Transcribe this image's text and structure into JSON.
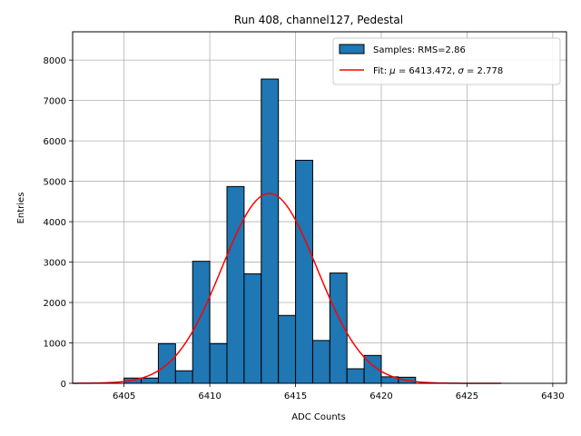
{
  "chart_data": {
    "type": "bar",
    "title": "Run 408, channel127, Pedestal",
    "xlabel": "ADC Counts",
    "ylabel": "Entries",
    "xlim": [
      6402,
      6430.8
    ],
    "ylim": [
      0,
      8700
    ],
    "xticks": [
      6405,
      6410,
      6415,
      6420,
      6425,
      6430
    ],
    "yticks": [
      0,
      1000,
      2000,
      3000,
      4000,
      5000,
      6000,
      7000,
      8000
    ],
    "grid": true,
    "legend_position": "top-right",
    "bin_width": 1,
    "bins": [
      {
        "x": 6405,
        "count": 130
      },
      {
        "x": 6406,
        "count": 130
      },
      {
        "x": 6407,
        "count": 980
      },
      {
        "x": 6408,
        "count": 310
      },
      {
        "x": 6409,
        "count": 3020
      },
      {
        "x": 6410,
        "count": 980
      },
      {
        "x": 6411,
        "count": 4870
      },
      {
        "x": 6412,
        "count": 2710
      },
      {
        "x": 6413,
        "count": 7530
      },
      {
        "x": 6414,
        "count": 1680
      },
      {
        "x": 6415,
        "count": 5520
      },
      {
        "x": 6416,
        "count": 1060
      },
      {
        "x": 6417,
        "count": 2730
      },
      {
        "x": 6418,
        "count": 360
      },
      {
        "x": 6419,
        "count": 690
      },
      {
        "x": 6420,
        "count": 160
      },
      {
        "x": 6421,
        "count": 150
      }
    ],
    "histogram_name": "Samples: RMS=2.86",
    "fit": {
      "name_prefix": "Fit: ",
      "mu_symbol": "μ",
      "mu_text": " = 6413.472, ",
      "sigma_symbol": "σ",
      "sigma_text": " = 2.778",
      "mu": 6413.472,
      "sigma": 2.778,
      "amplitude": 4700,
      "x_range": [
        6402,
        6427
      ]
    },
    "colors": {
      "bar_fill": "#1f77b4",
      "bar_edge": "#000000",
      "fit_line": "#ff0000",
      "grid": "#b0b0b0"
    }
  }
}
